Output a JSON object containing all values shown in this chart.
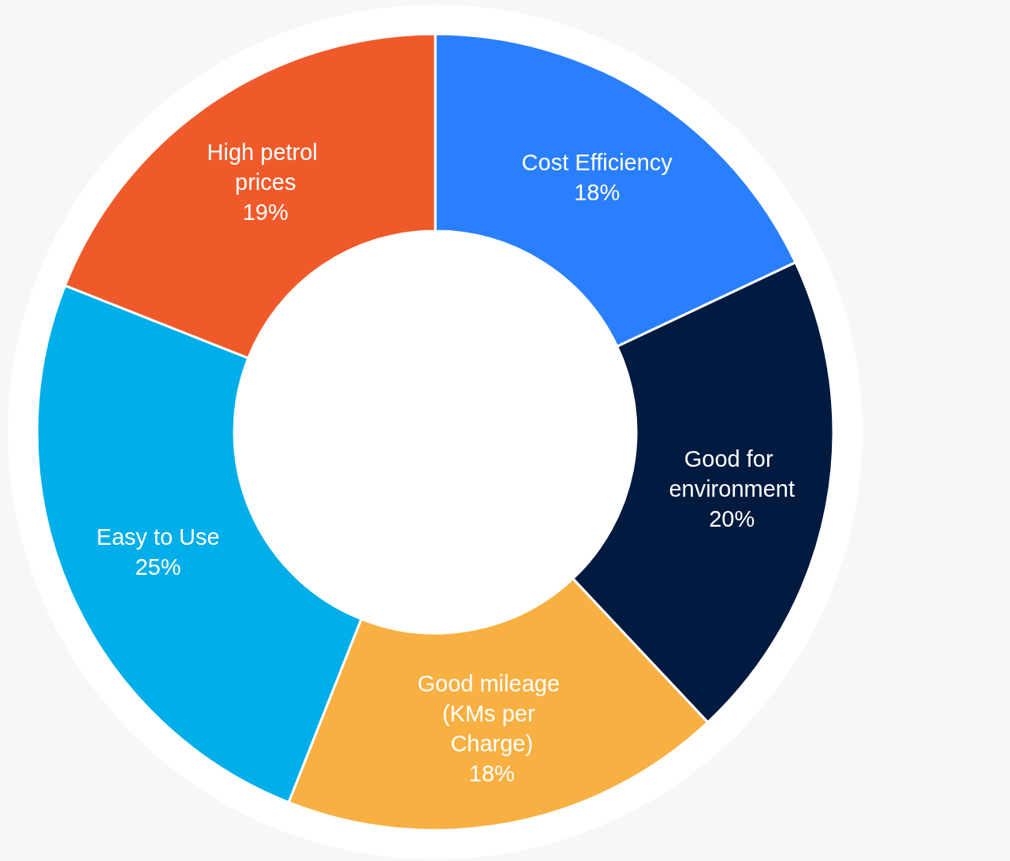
{
  "chart_data": {
    "type": "donut",
    "categories": [
      "Cost Efficiency",
      "Good for environment",
      "Good mileage (KMs per Charge)",
      "Easy to Use",
      "High petrol prices"
    ],
    "values": [
      18,
      20,
      18,
      25,
      19
    ],
    "value_labels": [
      "18%",
      "20%",
      "18%",
      "25%",
      "19%"
    ],
    "colors": [
      "#2a7fff",
      "#001a40",
      "#f8b042",
      "#00aeea",
      "#f05a2b"
    ],
    "legend": false
  }
}
